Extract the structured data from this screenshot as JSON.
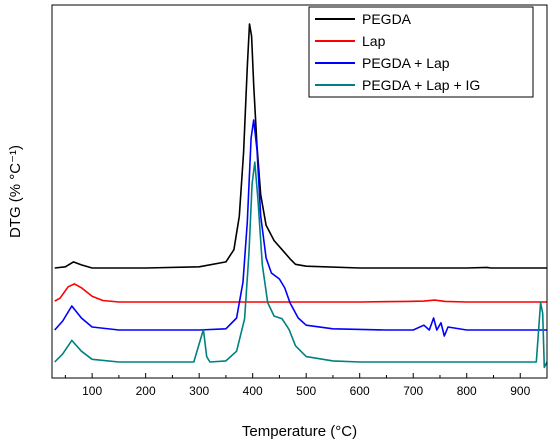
{
  "chart_data": {
    "type": "line",
    "xlabel": "Temperature (°C)",
    "ylabel": "DTG (% °C⁻¹)",
    "xlim": [
      25,
      950
    ],
    "xticks": [
      100,
      200,
      300,
      400,
      500,
      600,
      700,
      800,
      900
    ],
    "y_tick_labels": false,
    "grid": false,
    "legend_position": "top-right",
    "series": [
      {
        "name": "PEGDA",
        "color": "#000000",
        "points": [
          [
            30,
            0.0
          ],
          [
            50,
            0.02
          ],
          [
            65,
            0.1
          ],
          [
            80,
            0.05
          ],
          [
            100,
            0.0
          ],
          [
            200,
            0.0
          ],
          [
            300,
            0.02
          ],
          [
            350,
            0.1
          ],
          [
            365,
            0.3
          ],
          [
            375,
            0.85
          ],
          [
            383,
            1.9
          ],
          [
            390,
            3.3
          ],
          [
            394,
            4.0
          ],
          [
            398,
            3.8
          ],
          [
            402,
            3.0
          ],
          [
            408,
            2.0
          ],
          [
            415,
            1.2
          ],
          [
            425,
            0.7
          ],
          [
            440,
            0.45
          ],
          [
            455,
            0.3
          ],
          [
            470,
            0.15
          ],
          [
            480,
            0.06
          ],
          [
            500,
            0.03
          ],
          [
            600,
            0.0
          ],
          [
            700,
            0.0
          ],
          [
            800,
            0.0
          ],
          [
            838,
            0.01
          ],
          [
            845,
            0.0
          ],
          [
            950,
            0.0
          ]
        ]
      },
      {
        "name": "Lap",
        "color": "#ff0000",
        "points": [
          [
            30,
            0.05
          ],
          [
            40,
            0.2
          ],
          [
            55,
            0.8
          ],
          [
            67,
            0.95
          ],
          [
            80,
            0.75
          ],
          [
            100,
            0.3
          ],
          [
            120,
            0.08
          ],
          [
            150,
            0.0
          ],
          [
            300,
            0.0
          ],
          [
            500,
            0.0
          ],
          [
            600,
            0.0
          ],
          [
            690,
            0.03
          ],
          [
            720,
            0.05
          ],
          [
            740,
            0.1
          ],
          [
            760,
            0.03
          ],
          [
            800,
            0.0
          ],
          [
            950,
            0.0
          ]
        ]
      },
      {
        "name": "PEGDA + Lap",
        "color": "#0000ff",
        "points": [
          [
            30,
            0.0
          ],
          [
            45,
            0.15
          ],
          [
            62,
            0.4
          ],
          [
            80,
            0.2
          ],
          [
            100,
            0.05
          ],
          [
            150,
            0.0
          ],
          [
            300,
            0.0
          ],
          [
            350,
            0.02
          ],
          [
            370,
            0.2
          ],
          [
            382,
            0.8
          ],
          [
            390,
            1.8
          ],
          [
            397,
            3.2
          ],
          [
            402,
            3.5
          ],
          [
            408,
            3.0
          ],
          [
            415,
            1.9
          ],
          [
            425,
            1.2
          ],
          [
            435,
            0.95
          ],
          [
            450,
            0.85
          ],
          [
            460,
            0.7
          ],
          [
            470,
            0.45
          ],
          [
            485,
            0.2
          ],
          [
            500,
            0.08
          ],
          [
            550,
            0.02
          ],
          [
            650,
            0.0
          ],
          [
            700,
            0.0
          ],
          [
            720,
            0.08
          ],
          [
            730,
            0.0
          ],
          [
            738,
            0.2
          ],
          [
            744,
            0.0
          ],
          [
            752,
            0.12
          ],
          [
            758,
            -0.1
          ],
          [
            765,
            0.05
          ],
          [
            800,
            0.0
          ],
          [
            950,
            0.0
          ]
        ]
      },
      {
        "name": "PEGDA + Lap + IG",
        "color": "#008080",
        "points": [
          [
            30,
            0.0
          ],
          [
            45,
            0.15
          ],
          [
            62,
            0.4
          ],
          [
            80,
            0.2
          ],
          [
            100,
            0.05
          ],
          [
            150,
            0.0
          ],
          [
            290,
            0.0
          ],
          [
            302,
            0.4
          ],
          [
            308,
            0.6
          ],
          [
            314,
            0.1
          ],
          [
            320,
            0.0
          ],
          [
            350,
            0.02
          ],
          [
            370,
            0.2
          ],
          [
            385,
            0.8
          ],
          [
            393,
            2.0
          ],
          [
            399,
            3.3
          ],
          [
            404,
            3.7
          ],
          [
            410,
            3.0
          ],
          [
            418,
            1.8
          ],
          [
            428,
            1.1
          ],
          [
            440,
            0.85
          ],
          [
            455,
            0.8
          ],
          [
            468,
            0.6
          ],
          [
            480,
            0.3
          ],
          [
            500,
            0.1
          ],
          [
            550,
            0.02
          ],
          [
            600,
            0.0
          ],
          [
            800,
            0.0
          ],
          [
            930,
            0.0
          ],
          [
            938,
            1.1
          ],
          [
            942,
            0.9
          ],
          [
            945,
            -0.1
          ],
          [
            950,
            0.0
          ]
        ]
      }
    ]
  }
}
